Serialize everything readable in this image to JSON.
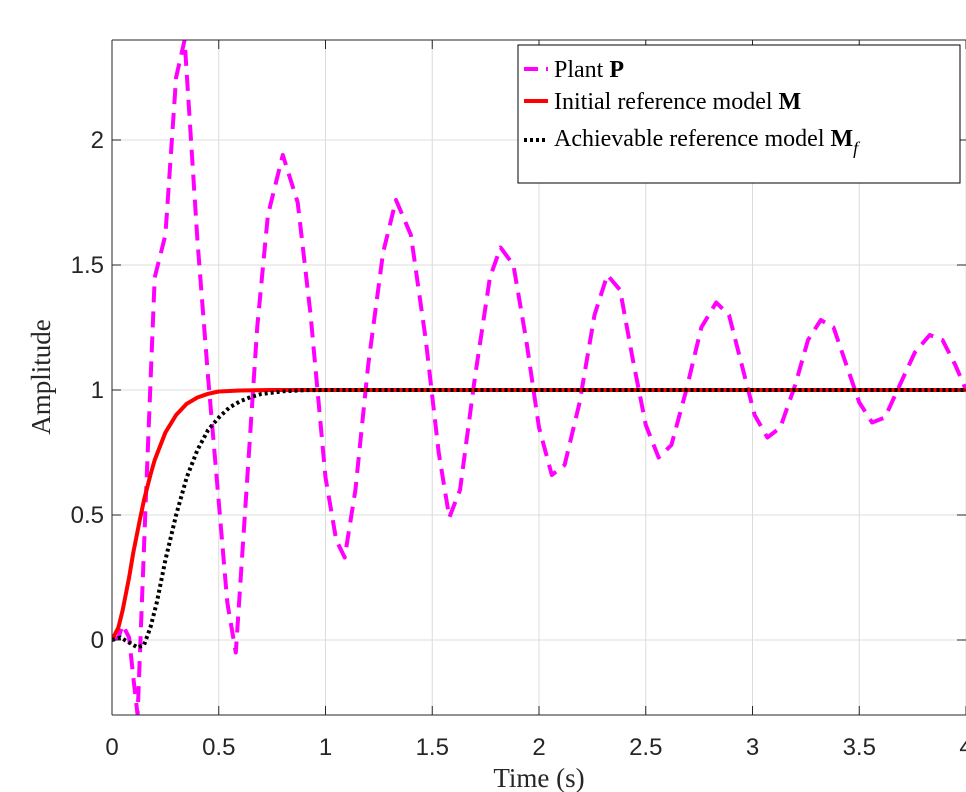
{
  "chart_data": {
    "type": "line",
    "title": "",
    "xlabel": "Time (s)",
    "ylabel": "Amplitude",
    "xlim": [
      0,
      4
    ],
    "ylim": [
      -0.3,
      2.4
    ],
    "grid": true,
    "legend_position": "top-right",
    "x_ticks": [
      0,
      0.5,
      1,
      1.5,
      2,
      2.5,
      3,
      3.5,
      4
    ],
    "x_tick_labels": [
      "0",
      "0.5",
      "1",
      "1.5",
      "2",
      "2.5",
      "3",
      "3.5",
      "4"
    ],
    "y_ticks": [
      0,
      0.5,
      1,
      1.5,
      2
    ],
    "y_tick_labels": [
      "0",
      "0.5",
      "1",
      "1.5",
      "2"
    ],
    "series": [
      {
        "name": "Plant P",
        "legend_plain": "Plant ",
        "legend_symbol": "P",
        "legend_subscript": "",
        "color": "#ff00ff",
        "style": "dashed",
        "points": [
          [
            0,
            0
          ],
          [
            0.03,
            0.01
          ],
          [
            0.05,
            0.06
          ],
          [
            0.08,
            0.01
          ],
          [
            0.1,
            -0.15
          ],
          [
            0.12,
            -0.3
          ],
          [
            0.16,
            0.6
          ],
          [
            0.2,
            1.45
          ],
          [
            0.25,
            1.62
          ],
          [
            0.3,
            2.25
          ],
          [
            0.34,
            2.4
          ],
          [
            0.4,
            1.6
          ],
          [
            0.45,
            1.05
          ],
          [
            0.5,
            0.55
          ],
          [
            0.54,
            0.15
          ],
          [
            0.58,
            -0.05
          ],
          [
            0.63,
            0.6
          ],
          [
            0.68,
            1.25
          ],
          [
            0.73,
            1.7
          ],
          [
            0.8,
            1.94
          ],
          [
            0.87,
            1.75
          ],
          [
            0.93,
            1.3
          ],
          [
            1.0,
            0.65
          ],
          [
            1.05,
            0.4
          ],
          [
            1.09,
            0.33
          ],
          [
            1.14,
            0.6
          ],
          [
            1.2,
            1.1
          ],
          [
            1.27,
            1.55
          ],
          [
            1.33,
            1.76
          ],
          [
            1.4,
            1.62
          ],
          [
            1.47,
            1.2
          ],
          [
            1.53,
            0.75
          ],
          [
            1.58,
            0.49
          ],
          [
            1.63,
            0.6
          ],
          [
            1.7,
            1.05
          ],
          [
            1.77,
            1.45
          ],
          [
            1.82,
            1.57
          ],
          [
            1.88,
            1.5
          ],
          [
            1.94,
            1.2
          ],
          [
            2.0,
            0.85
          ],
          [
            2.06,
            0.66
          ],
          [
            2.12,
            0.7
          ],
          [
            2.19,
            0.95
          ],
          [
            2.26,
            1.3
          ],
          [
            2.32,
            1.46
          ],
          [
            2.38,
            1.4
          ],
          [
            2.44,
            1.12
          ],
          [
            2.5,
            0.86
          ],
          [
            2.56,
            0.73
          ],
          [
            2.62,
            0.78
          ],
          [
            2.69,
            1.0
          ],
          [
            2.76,
            1.25
          ],
          [
            2.83,
            1.35
          ],
          [
            2.89,
            1.3
          ],
          [
            2.95,
            1.1
          ],
          [
            3.01,
            0.9
          ],
          [
            3.07,
            0.81
          ],
          [
            3.13,
            0.85
          ],
          [
            3.2,
            1.02
          ],
          [
            3.26,
            1.2
          ],
          [
            3.32,
            1.28
          ],
          [
            3.38,
            1.25
          ],
          [
            3.44,
            1.1
          ],
          [
            3.5,
            0.95
          ],
          [
            3.56,
            0.87
          ],
          [
            3.62,
            0.89
          ],
          [
            3.69,
            1.02
          ],
          [
            3.76,
            1.15
          ],
          [
            3.83,
            1.22
          ],
          [
            3.89,
            1.2
          ],
          [
            3.95,
            1.1
          ],
          [
            4.0,
            1.0
          ]
        ]
      },
      {
        "name": "Initial reference model M",
        "legend_plain": "Initial reference model ",
        "legend_symbol": "M",
        "legend_subscript": "",
        "color": "#ff0000",
        "style": "solid",
        "points": [
          [
            0,
            0
          ],
          [
            0.03,
            0.05
          ],
          [
            0.05,
            0.12
          ],
          [
            0.08,
            0.25
          ],
          [
            0.1,
            0.35
          ],
          [
            0.13,
            0.48
          ],
          [
            0.15,
            0.56
          ],
          [
            0.18,
            0.66
          ],
          [
            0.2,
            0.72
          ],
          [
            0.25,
            0.83
          ],
          [
            0.3,
            0.9
          ],
          [
            0.35,
            0.945
          ],
          [
            0.4,
            0.97
          ],
          [
            0.45,
            0.985
          ],
          [
            0.5,
            0.994
          ],
          [
            0.6,
            0.998
          ],
          [
            0.75,
            1.0
          ],
          [
            1.0,
            1.0
          ],
          [
            4.0,
            1.0
          ]
        ]
      },
      {
        "name": "Achievable reference model Mf",
        "legend_plain": "Achievable reference model ",
        "legend_symbol": "M",
        "legend_subscript": "f",
        "color": "#000000",
        "style": "dotted",
        "points": [
          [
            0,
            0
          ],
          [
            0.04,
            0.01
          ],
          [
            0.08,
            -0.01
          ],
          [
            0.12,
            -0.03
          ],
          [
            0.15,
            -0.02
          ],
          [
            0.18,
            0.05
          ],
          [
            0.21,
            0.15
          ],
          [
            0.25,
            0.32
          ],
          [
            0.3,
            0.5
          ],
          [
            0.35,
            0.65
          ],
          [
            0.4,
            0.76
          ],
          [
            0.45,
            0.84
          ],
          [
            0.5,
            0.89
          ],
          [
            0.55,
            0.93
          ],
          [
            0.6,
            0.955
          ],
          [
            0.65,
            0.972
          ],
          [
            0.7,
            0.984
          ],
          [
            0.8,
            0.995
          ],
          [
            0.9,
            0.999
          ],
          [
            1.0,
            1.0
          ],
          [
            4.0,
            1.0
          ]
        ]
      }
    ]
  }
}
